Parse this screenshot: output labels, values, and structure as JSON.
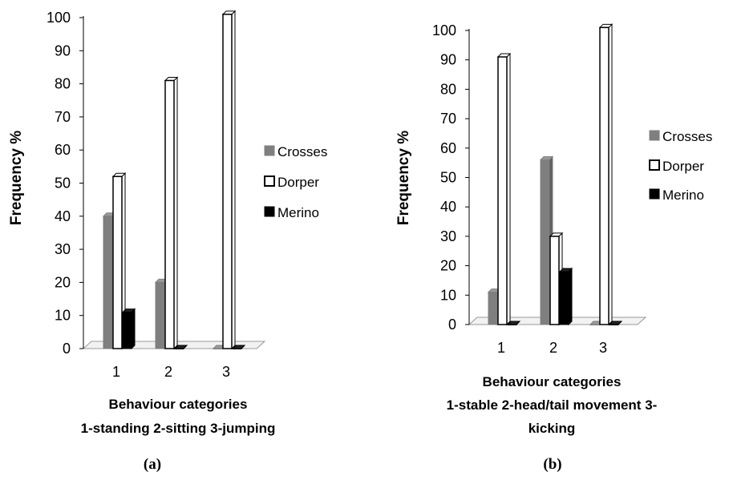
{
  "chart_data": [
    {
      "type": "bar",
      "panel_label": "(a)",
      "categories": [
        "1",
        "2",
        "3"
      ],
      "series": [
        {
          "name": "Crosses",
          "values": [
            40,
            20,
            0
          ],
          "color": "#7f7f7f"
        },
        {
          "name": "Dorper",
          "values": [
            52,
            81,
            101
          ],
          "color": "#ffffff"
        },
        {
          "name": "Merino",
          "values": [
            11,
            0,
            0
          ],
          "color": "#000000"
        }
      ],
      "ylabel": "Frequency %",
      "xlabel_lines": [
        "Behaviour categories",
        "1-standing 2-sitting 3-jumping"
      ],
      "yticks": [
        "0",
        "10",
        "20",
        "30",
        "40",
        "50",
        "60",
        "70",
        "80",
        "90",
        "100"
      ],
      "ylim": [
        0,
        100
      ],
      "grid": false,
      "legend": "right"
    },
    {
      "type": "bar",
      "panel_label": "(b)",
      "categories": [
        "1",
        "2",
        "3"
      ],
      "series": [
        {
          "name": "Crosses",
          "values": [
            11,
            56,
            0
          ],
          "color": "#7f7f7f"
        },
        {
          "name": "Dorper",
          "values": [
            91,
            30,
            101
          ],
          "color": "#ffffff"
        },
        {
          "name": "Merino",
          "values": [
            0,
            18,
            0
          ],
          "color": "#000000"
        }
      ],
      "ylabel": "Frequency %",
      "xlabel_lines": [
        "Behaviour categories",
        "1-stable 2-head/tail  movement 3-",
        "kicking"
      ],
      "yticks": [
        "0",
        "10",
        "20",
        "30",
        "40",
        "50",
        "60",
        "70",
        "80",
        "90",
        "100"
      ],
      "ylim": [
        0,
        100
      ],
      "grid": false,
      "legend": "right"
    }
  ]
}
